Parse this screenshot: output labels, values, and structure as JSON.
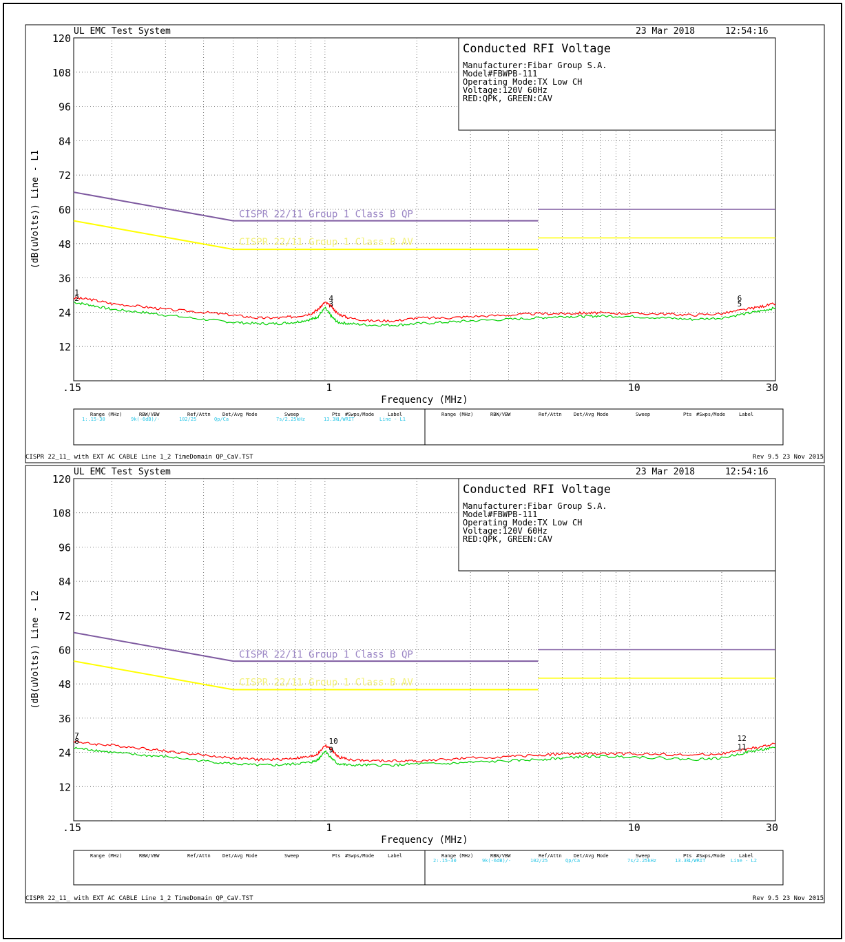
{
  "colors": {
    "qpk_trace": "#ff0000",
    "cav_trace": "#00d000",
    "qp_limit": "#7e5aa0",
    "av_limit": "#ffff00",
    "qp_limit_label": "#9b86c5",
    "av_limit_label": "#f3f17a",
    "info_cyan": "#26c5e6",
    "grid": "#555555"
  },
  "plots": [
    {
      "system_title": "UL EMC Test System",
      "date": "23 Mar 2018",
      "time": "12:54:16",
      "info_title": "Conducted RFI Voltage",
      "info_lines": [
        "Manufacturer:Fibar Group S.A.",
        "Model#FBWPB-111",
        "Operating Mode:TX Low CH",
        "Voltage:120V 60Hz",
        "RED:QPK, GREEN:CAV"
      ],
      "ylabel": "(dB(uVolts)) Line - L1",
      "xlabel": "Frequency (MHz)",
      "x_ticks": [
        ".15",
        "1",
        "10",
        "30"
      ],
      "y_ticks": [
        "120",
        "108",
        "96",
        "84",
        "72",
        "60",
        "48",
        "36",
        "24",
        "12"
      ],
      "limit_qp_label": "CISPR 22/11 Group 1 Class B QP",
      "limit_av_label": "CISPR 22/11 Group 1 Class B AV",
      "marker_labels": [
        "1",
        "2",
        "3",
        "4",
        "5",
        "6"
      ],
      "table_headers": [
        "Range (MHz)",
        "RBW/VBW",
        "Ref/Attn",
        "Det/Avg Mode",
        "Sweep",
        "Pts",
        "#Swps/Mode",
        "Label"
      ],
      "table_row": [
        "1:.15-30",
        "9k(-6dB)/-",
        "102/25",
        "Qp/Ca",
        "7s/2.25kHz",
        "13.3k",
        "1/WRIT",
        "Line - L1"
      ],
      "table_row_side": "left",
      "footer_left": "CISPR 22_11_ with EXT AC CABLE Line 1_2 TimeDomain QP_CaV.TST",
      "footer_right": "Rev 9.5 23 Nov 2015"
    },
    {
      "system_title": "UL EMC Test System",
      "date": "23 Mar 2018",
      "time": "12:54:16",
      "info_title": "Conducted RFI Voltage",
      "info_lines": [
        "Manufacturer:Fibar Group S.A.",
        "Model#FBWPB-111",
        "Operating Mode:TX Low CH",
        "Voltage:120V 60Hz",
        "RED:QPK, GREEN:CAV"
      ],
      "ylabel": "(dB(uVolts)) Line - L2",
      "xlabel": "Frequency (MHz)",
      "x_ticks": [
        ".15",
        "1",
        "10",
        "30"
      ],
      "y_ticks": [
        "120",
        "108",
        "96",
        "84",
        "72",
        "60",
        "48",
        "36",
        "24",
        "12"
      ],
      "limit_qp_label": "CISPR 22/11 Group 1 Class B QP",
      "limit_av_label": "CISPR 22/11 Group 1 Class B AV",
      "marker_labels": [
        "7",
        "8",
        "9",
        "10",
        "11",
        "12"
      ],
      "table_headers": [
        "Range (MHz)",
        "RBW/VBW",
        "Ref/Attn",
        "Det/Avg Mode",
        "Sweep",
        "Pts",
        "#Swps/Mode",
        "Label"
      ],
      "table_row": [
        "2:.15-30",
        "9k(-6dB)/-",
        "102/25",
        "Qp/Ca",
        "7s/2.25kHz",
        "13.3k",
        "1/WRIT",
        "Line - L2"
      ],
      "table_row_side": "right",
      "footer_left": "CISPR 22_11_ with EXT AC CABLE Line 1_2 TimeDomain QP_CaV.TST",
      "footer_right": "Rev 9.5 23 Nov 2015"
    }
  ],
  "chart_data": [
    {
      "type": "line",
      "title": "Conducted RFI Voltage",
      "xlabel": "Frequency (MHz)",
      "ylabel": "(dB(uVolts)) Line - L1",
      "x_scale": "log",
      "xlim": [
        0.15,
        30
      ],
      "ylim": [
        0,
        120
      ],
      "grid": true,
      "series": [
        {
          "name": "QPK",
          "x": [
            0.15,
            0.17,
            0.2,
            0.25,
            0.3,
            0.4,
            0.5,
            0.6,
            0.7,
            0.8,
            0.9,
            0.95,
            1.0,
            1.05,
            1.1,
            1.2,
            1.4,
            1.7,
            2.0,
            2.5,
            3.0,
            4.0,
            5.0,
            6.0,
            7.0,
            8.0,
            10.0,
            13.0,
            16.0,
            20.0,
            24.0,
            27.0,
            30.0
          ],
          "y": [
            29,
            28.5,
            27,
            26,
            25,
            24,
            23,
            22,
            22,
            22.5,
            23.5,
            25,
            27.5,
            26,
            23.5,
            22,
            21,
            21,
            22,
            22,
            22.5,
            23,
            23.5,
            23.5,
            23.7,
            23.7,
            23.6,
            23.4,
            23,
            23.5,
            25,
            26,
            27
          ]
        },
        {
          "name": "CAV",
          "x": [
            0.15,
            0.17,
            0.2,
            0.25,
            0.3,
            0.4,
            0.5,
            0.6,
            0.7,
            0.8,
            0.9,
            0.95,
            1.0,
            1.05,
            1.1,
            1.2,
            1.4,
            1.7,
            2.0,
            2.5,
            3.0,
            4.0,
            5.0,
            6.0,
            7.0,
            8.0,
            10.0,
            13.0,
            16.0,
            20.0,
            24.0,
            27.0,
            30.0
          ],
          "y": [
            27.5,
            26.5,
            25,
            24,
            23,
            21.5,
            20.5,
            20,
            20,
            20.5,
            21.5,
            22.5,
            25.5,
            22.5,
            20.5,
            20,
            19.5,
            19.5,
            20,
            20.5,
            21,
            21.5,
            22,
            22.5,
            22.5,
            22.7,
            22.5,
            22,
            21.5,
            22,
            23.5,
            24.5,
            25.5
          ]
        },
        {
          "name": "CISPR 22/11 Group 1 Class B QP",
          "x": [
            0.15,
            0.5,
            0.5,
            5.0,
            5.0,
            30.0
          ],
          "y": [
            66,
            56,
            56,
            56,
            60,
            60
          ]
        },
        {
          "name": "CISPR 22/11 Group 1 Class B AV",
          "x": [
            0.15,
            0.5,
            0.5,
            5.0,
            5.0,
            30.0
          ],
          "y": [
            56,
            46,
            46,
            46,
            50,
            50
          ]
        }
      ],
      "markers": [
        {
          "label": "1",
          "x": 0.151,
          "y": 30
        },
        {
          "label": "2",
          "x": 0.151,
          "y": 28
        },
        {
          "label": "3",
          "x": 1.03,
          "y": 26
        },
        {
          "label": "4",
          "x": 1.03,
          "y": 28
        },
        {
          "label": "5",
          "x": 22.5,
          "y": 26
        },
        {
          "label": "6",
          "x": 22.5,
          "y": 28
        }
      ]
    },
    {
      "type": "line",
      "title": "Conducted RFI Voltage",
      "xlabel": "Frequency (MHz)",
      "ylabel": "(dB(uVolts)) Line - L2",
      "x_scale": "log",
      "xlim": [
        0.15,
        30
      ],
      "ylim": [
        0,
        120
      ],
      "grid": true,
      "series": [
        {
          "name": "QPK",
          "x": [
            0.15,
            0.17,
            0.2,
            0.25,
            0.3,
            0.4,
            0.5,
            0.6,
            0.7,
            0.8,
            0.9,
            0.95,
            1.0,
            1.05,
            1.1,
            1.2,
            1.4,
            1.7,
            2.0,
            2.5,
            3.0,
            4.0,
            5.0,
            6.0,
            7.0,
            8.0,
            10.0,
            13.0,
            16.0,
            20.0,
            24.0,
            27.0,
            30.0
          ],
          "y": [
            28,
            27,
            26.5,
            25.5,
            24.5,
            23,
            22,
            21.5,
            21.5,
            22,
            22.5,
            23.5,
            26.5,
            25,
            22.5,
            21.5,
            21,
            21,
            21,
            21.5,
            22,
            22.5,
            23,
            23.5,
            23.5,
            23.5,
            23.5,
            23.3,
            23,
            23.5,
            25,
            26,
            27
          ]
        },
        {
          "name": "CAV",
          "x": [
            0.15,
            0.17,
            0.2,
            0.25,
            0.3,
            0.4,
            0.5,
            0.6,
            0.7,
            0.8,
            0.9,
            0.95,
            1.0,
            1.05,
            1.1,
            1.2,
            1.4,
            1.7,
            2.0,
            2.5,
            3.0,
            4.0,
            5.0,
            6.0,
            7.0,
            8.0,
            10.0,
            13.0,
            16.0,
            20.0,
            24.0,
            27.0,
            30.0
          ],
          "y": [
            25.5,
            25,
            24,
            23,
            22.5,
            21,
            20,
            19.5,
            19.5,
            20,
            20.5,
            21.5,
            24.5,
            22,
            20,
            19.5,
            19.5,
            19.5,
            20,
            20,
            20.5,
            21,
            21.5,
            22,
            22.5,
            22.5,
            22.5,
            22,
            21.5,
            22,
            24,
            25,
            25.5
          ]
        },
        {
          "name": "CISPR 22/11 Group 1 Class B QP",
          "x": [
            0.15,
            0.5,
            0.5,
            5.0,
            5.0,
            30.0
          ],
          "y": [
            66,
            56,
            56,
            56,
            60,
            60
          ]
        },
        {
          "name": "CISPR 22/11 Group 1 Class B AV",
          "x": [
            0.15,
            0.5,
            0.5,
            5.0,
            5.0,
            30.0
          ],
          "y": [
            56,
            46,
            46,
            46,
            50,
            50
          ]
        }
      ],
      "markers": [
        {
          "label": "7",
          "x": 0.151,
          "y": 29
        },
        {
          "label": "8",
          "x": 0.151,
          "y": 27
        },
        {
          "label": "9",
          "x": 1.03,
          "y": 24
        },
        {
          "label": "10",
          "x": 1.03,
          "y": 27
        },
        {
          "label": "11",
          "x": 22.5,
          "y": 25
        },
        {
          "label": "12",
          "x": 22.5,
          "y": 28
        }
      ]
    }
  ]
}
